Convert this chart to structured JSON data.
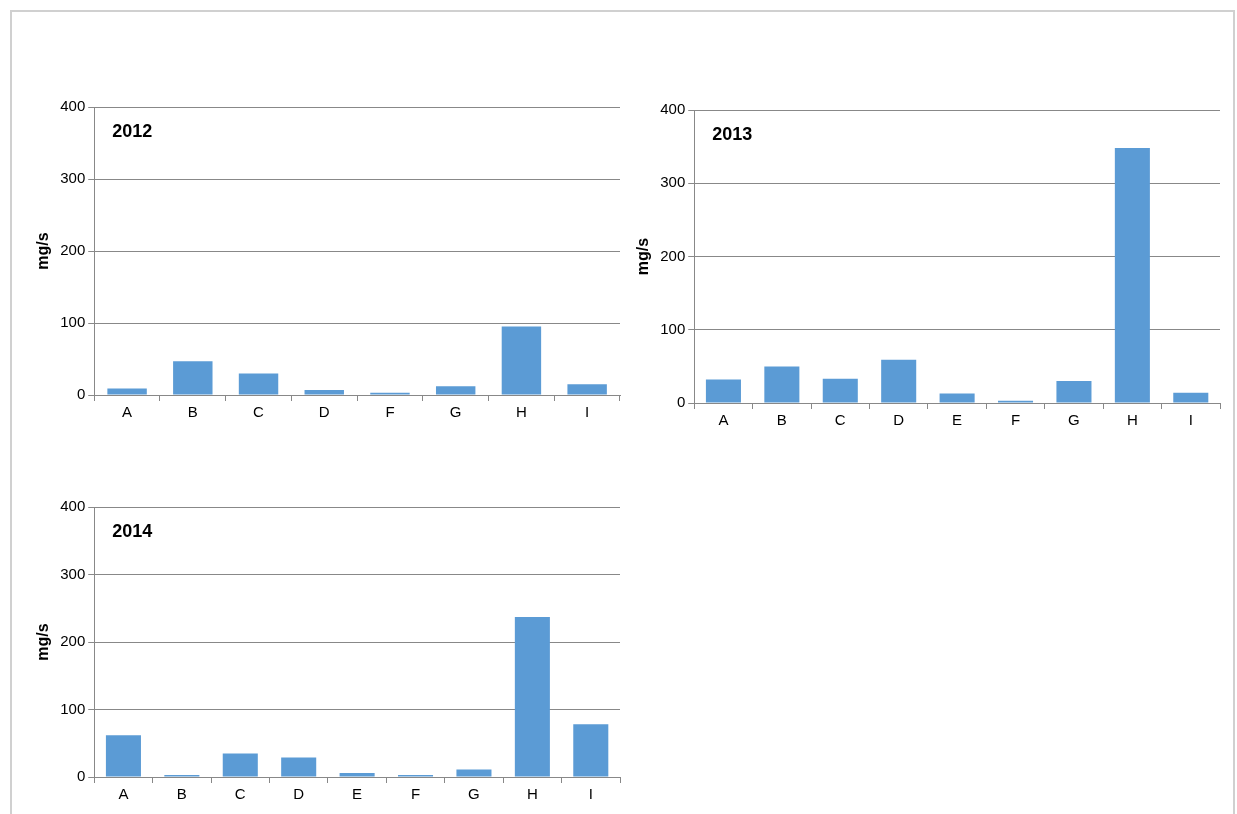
{
  "chart_data": [
    {
      "type": "bar",
      "title": "2012",
      "ylabel": "mg/s",
      "categories": [
        "A",
        "B",
        "C",
        "D",
        "F",
        "G",
        "H",
        "I"
      ],
      "values": [
        9,
        47,
        30,
        7,
        3,
        12,
        95,
        15
      ],
      "color": "#5b9bd5",
      "ylim": [
        0,
        400
      ],
      "yticks": [
        0,
        100,
        200,
        300,
        400
      ],
      "grid": "y"
    },
    {
      "type": "bar",
      "title": "2013",
      "ylabel": "mg/s",
      "categories": [
        "A",
        "B",
        "C",
        "D",
        "E",
        "F",
        "G",
        "H",
        "I"
      ],
      "values": [
        32,
        50,
        33,
        59,
        13,
        3,
        30,
        348,
        14
      ],
      "color": "#5b9bd5",
      "ylim": [
        0,
        400
      ],
      "yticks": [
        0,
        100,
        200,
        300,
        400
      ],
      "grid": "y"
    },
    {
      "type": "bar",
      "title": "2014",
      "ylabel": "mg/s",
      "categories": [
        "A",
        "B",
        "C",
        "D",
        "E",
        "F",
        "G",
        "H",
        "I"
      ],
      "values": [
        62,
        3,
        35,
        29,
        6,
        3,
        11,
        237,
        78
      ],
      "color": "#5b9bd5",
      "ylim": [
        0,
        400
      ],
      "yticks": [
        0,
        100,
        200,
        300,
        400
      ],
      "grid": "y"
    }
  ]
}
